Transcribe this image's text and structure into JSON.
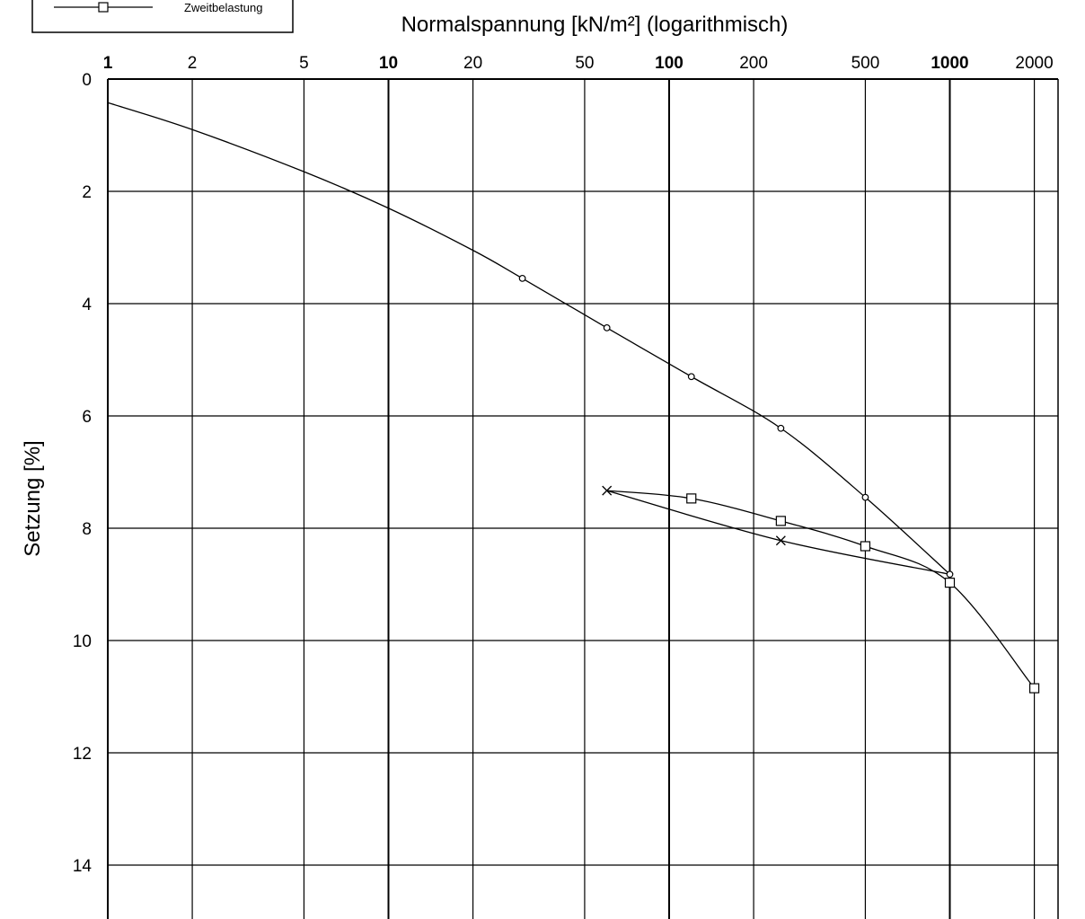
{
  "chart_data": {
    "type": "line",
    "title": "",
    "xlabel": "Normalspannung [kN/m²]  (logarithmisch)",
    "ylabel": "Setzung [%]",
    "x_scale": "log",
    "y_inverted": true,
    "xlim": [
      1,
      2500
    ],
    "ylim": [
      0,
      15
    ],
    "grid": true,
    "x_ticks": [
      {
        "value": 1,
        "label": "1",
        "major": true
      },
      {
        "value": 2,
        "label": "2",
        "major": false
      },
      {
        "value": 5,
        "label": "5",
        "major": false
      },
      {
        "value": 10,
        "label": "10",
        "major": true
      },
      {
        "value": 20,
        "label": "20",
        "major": false
      },
      {
        "value": 50,
        "label": "50",
        "major": false
      },
      {
        "value": 100,
        "label": "100",
        "major": true
      },
      {
        "value": 200,
        "label": "200",
        "major": false
      },
      {
        "value": 500,
        "label": "500",
        "major": false
      },
      {
        "value": 1000,
        "label": "1000",
        "major": true
      },
      {
        "value": 2000,
        "label": "2000",
        "major": false
      }
    ],
    "y_ticks": [
      {
        "value": 0,
        "label": "0"
      },
      {
        "value": 2,
        "label": "2"
      },
      {
        "value": 4,
        "label": "4"
      },
      {
        "value": 6,
        "label": "6"
      },
      {
        "value": 8,
        "label": "8"
      },
      {
        "value": 10,
        "label": "10"
      },
      {
        "value": 12,
        "label": "12"
      },
      {
        "value": 14,
        "label": "14"
      }
    ],
    "legend": {
      "position": "top-left",
      "entries": [
        "Zweitbelastung"
      ]
    },
    "series": [
      {
        "marker": "circle",
        "curve": [
          [
            1,
            0.42
          ],
          [
            2,
            0.9
          ],
          [
            5,
            1.65
          ],
          [
            10,
            2.3
          ],
          [
            20,
            3.05
          ],
          [
            30,
            3.55
          ],
          [
            60,
            4.43
          ],
          [
            120,
            5.3
          ],
          [
            250,
            6.22
          ],
          [
            500,
            7.45
          ],
          [
            1000,
            8.82
          ]
        ],
        "points": [
          [
            30,
            3.55
          ],
          [
            60,
            4.43
          ],
          [
            120,
            5.3
          ],
          [
            250,
            6.22
          ],
          [
            500,
            7.45
          ],
          [
            1000,
            8.82
          ]
        ]
      },
      {
        "marker": "cross",
        "curve": [
          [
            60,
            7.33
          ],
          [
            250,
            8.22
          ],
          [
            1000,
            8.82
          ]
        ],
        "points": [
          [
            60,
            7.33
          ],
          [
            250,
            8.22
          ]
        ]
      },
      {
        "name": "Zweitbelastung",
        "marker": "square",
        "curve": [
          [
            60,
            7.33
          ],
          [
            120,
            7.47
          ],
          [
            250,
            7.87
          ],
          [
            500,
            8.32
          ],
          [
            1000,
            8.97
          ],
          [
            2000,
            10.85
          ]
        ],
        "points": [
          [
            120,
            7.47
          ],
          [
            250,
            7.87
          ],
          [
            500,
            8.32
          ],
          [
            1000,
            8.97
          ],
          [
            2000,
            10.85
          ]
        ]
      }
    ]
  }
}
